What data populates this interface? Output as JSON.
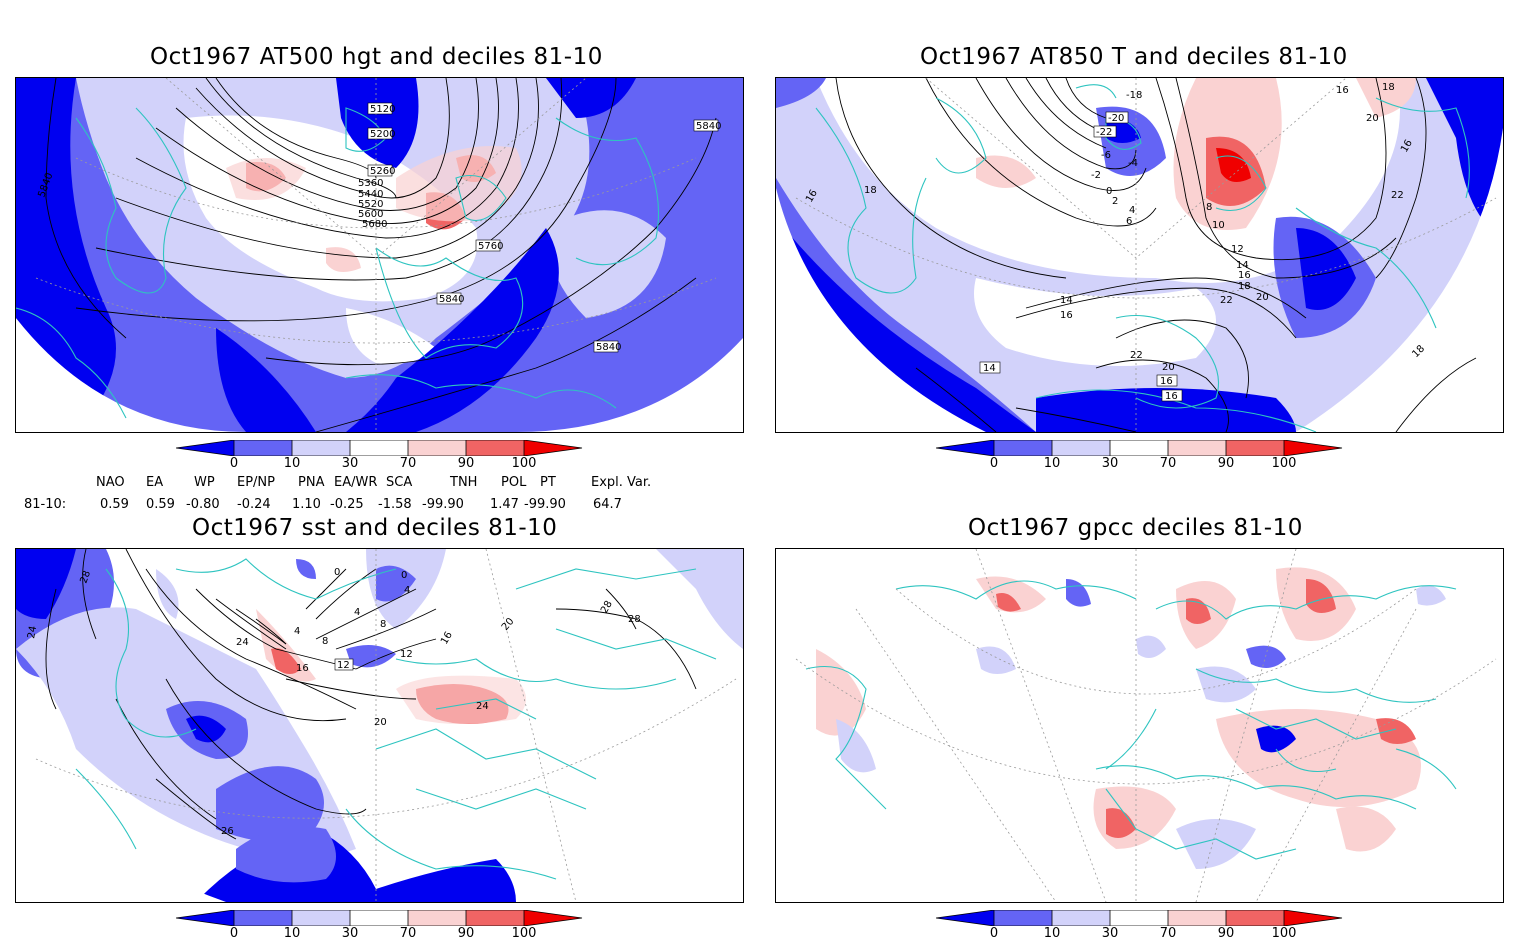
{
  "panels": {
    "p1": {
      "title": "Oct1967 AT500 hgt and deciles 81-10",
      "contour_labels": [
        "5120",
        "5200",
        "5260",
        "5360",
        "5440",
        "5520",
        "5600",
        "5680",
        "5760",
        "5840",
        "5840",
        "5840",
        "5840"
      ]
    },
    "p2": {
      "title": "Oct1967 AT850 T and deciles 81-10",
      "contour_labels": [
        "-18",
        "-20",
        "-22",
        "-6",
        "-4",
        "-2",
        "0",
        "2",
        "4",
        "6",
        "8",
        "10",
        "12",
        "14",
        "16",
        "18",
        "20",
        "22",
        "14",
        "16",
        "16",
        "18",
        "16",
        "22",
        "20",
        "18",
        "16",
        "14",
        "16",
        "20",
        "22",
        "18",
        "16"
      ]
    },
    "p3": {
      "title": "Oct1967 sst and deciles 81-10",
      "contour_labels": [
        "28",
        "24",
        "0",
        "0",
        "4",
        "4",
        "8",
        "4",
        "8",
        "12",
        "12",
        "16",
        "20",
        "24",
        "24",
        "20",
        "28",
        "28",
        "16",
        "26"
      ]
    },
    "p4": {
      "title": "Oct1967 gpcc deciles 81-10"
    }
  },
  "colorbar": {
    "tick_labels": [
      "0",
      "10",
      "30",
      "70",
      "90",
      "100"
    ],
    "colors": [
      "#0000f0",
      "#6464f5",
      "#d2d2fa",
      "#ffffff",
      "#fad2d2",
      "#f06464",
      "#f00000"
    ]
  },
  "indices": {
    "headers": [
      "NAO",
      "EA",
      "WP",
      "EP/NP",
      "PNA",
      "EA/WR",
      "SCA",
      "TNH",
      "POL",
      "PT",
      "Expl. Var."
    ],
    "row_label": "81-10:",
    "values": [
      "0.59",
      "0.59",
      "-0.80",
      "-0.24",
      "1.10",
      "-0.25",
      "-1.58",
      "-99.90",
      "1.47",
      "-99.90",
      "64.7"
    ]
  },
  "map_colors": {
    "coast": "#2ec4c0",
    "contour": "#000000",
    "grid": "#9a9a9a"
  }
}
